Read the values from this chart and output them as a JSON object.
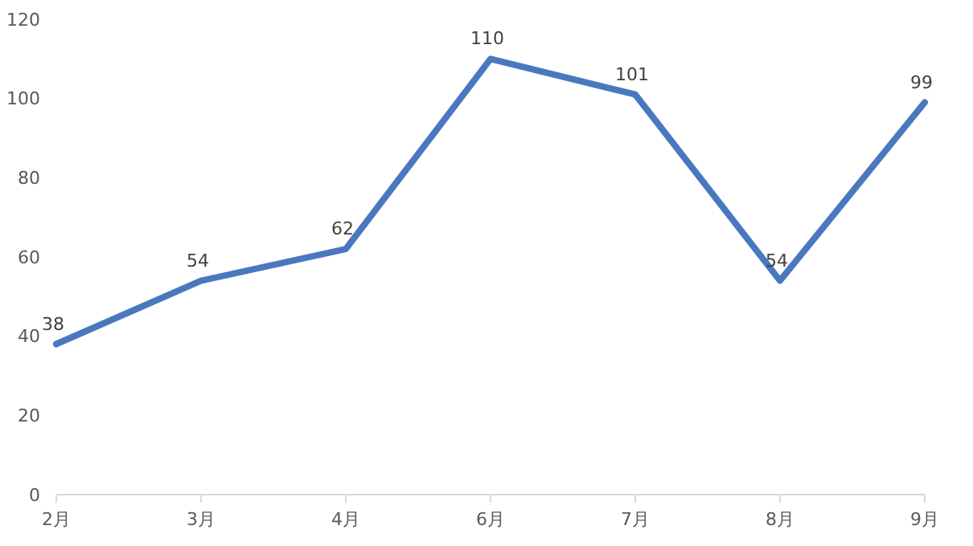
{
  "chart_data": {
    "type": "line",
    "categories": [
      "2月",
      "3月",
      "4月",
      "6月",
      "7月",
      "8月",
      "9月"
    ],
    "series": [
      {
        "color": "#4a78be",
        "values": [
          38,
          54,
          62,
          110,
          101,
          54,
          99
        ]
      }
    ],
    "ylim": [
      0,
      120
    ],
    "yticks": [
      0,
      20,
      40,
      60,
      80,
      100,
      120
    ],
    "data_labels": true,
    "marker": "none",
    "line_style": "solid"
  }
}
